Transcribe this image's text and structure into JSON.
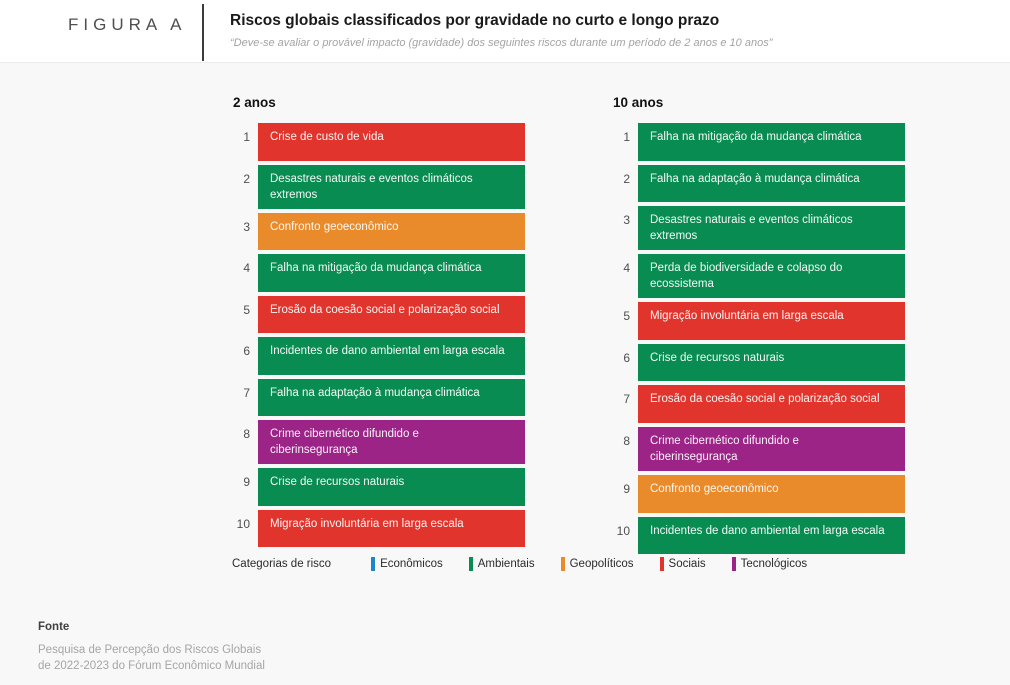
{
  "header": {
    "figure_label": "FIGURA A",
    "title": "Riscos globais classificados por gravidade no curto e longo prazo",
    "subtitle": "“Deve-se avaliar o provável impacto (gravidade) dos seguintes riscos durante um período de 2 anos e 10 anos”"
  },
  "category_colors": {
    "Econômicos": "#1e86c7",
    "Ambientais": "#098c51",
    "Geopolíticos": "#e98a2b",
    "Sociais": "#e1342c",
    "Tecnológicos": "#9c2487"
  },
  "chart_data": {
    "type": "table",
    "title": "Riscos globais classificados por gravidade no curto e longo prazo",
    "subtitle": "“Deve-se avaliar o provável impacto (gravidade) dos seguintes riscos durante um período de 2 anos e 10 anos”",
    "legend_position": "bottom",
    "columns": [
      {
        "label": "2 anos",
        "items": [
          {
            "rank": 1,
            "label": "Crise de custo de vida",
            "category": "Sociais"
          },
          {
            "rank": 2,
            "label": "Desastres naturais e eventos climáticos extremos",
            "category": "Ambientais"
          },
          {
            "rank": 3,
            "label": "Confronto geoeconômico",
            "category": "Geopolíticos"
          },
          {
            "rank": 4,
            "label": "Falha na mitigação da mudança climática",
            "category": "Ambientais"
          },
          {
            "rank": 5,
            "label": "Erosão da coesão social e polarização social",
            "category": "Sociais"
          },
          {
            "rank": 6,
            "label": "Incidentes de dano ambiental em larga escala",
            "category": "Ambientais"
          },
          {
            "rank": 7,
            "label": "Falha na adaptação à mudança climática",
            "category": "Ambientais"
          },
          {
            "rank": 8,
            "label": "Crime cibernético difundido e ciberinsegurança",
            "category": "Tecnológicos"
          },
          {
            "rank": 9,
            "label": "Crise de recursos naturais",
            "category": "Ambientais"
          },
          {
            "rank": 10,
            "label": "Migração involuntária em larga escala",
            "category": "Sociais"
          }
        ]
      },
      {
        "label": "10 anos",
        "items": [
          {
            "rank": 1,
            "label": "Falha na mitigação da mudança climática",
            "category": "Ambientais"
          },
          {
            "rank": 2,
            "label": "Falha na adaptação à mudança climática",
            "category": "Ambientais"
          },
          {
            "rank": 3,
            "label": "Desastres naturais e eventos climáticos extremos",
            "category": "Ambientais"
          },
          {
            "rank": 4,
            "label": "Perda de biodiversidade e colapso do ecossistema",
            "category": "Ambientais"
          },
          {
            "rank": 5,
            "label": "Migração involuntária em larga escala",
            "category": "Sociais"
          },
          {
            "rank": 6,
            "label": "Crise de recursos naturais",
            "category": "Ambientais"
          },
          {
            "rank": 7,
            "label": "Erosão da coesão social e polarização social",
            "category": "Sociais"
          },
          {
            "rank": 8,
            "label": "Crime cibernético difundido e ciberinsegurança",
            "category": "Tecnológicos"
          },
          {
            "rank": 9,
            "label": "Confronto geoeconômico",
            "category": "Geopolíticos"
          },
          {
            "rank": 10,
            "label": "Incidentes de dano ambiental em larga escala",
            "category": "Ambientais"
          }
        ]
      }
    ]
  },
  "legend": {
    "label": "Categorias de risco",
    "items": [
      {
        "label": "Econômicos",
        "color": "#1e86c7"
      },
      {
        "label": "Ambientais",
        "color": "#098c51"
      },
      {
        "label": "Geopolíticos",
        "color": "#e98a2b"
      },
      {
        "label": "Sociais",
        "color": "#e1342c"
      },
      {
        "label": "Tecnológicos",
        "color": "#9c2487"
      }
    ]
  },
  "footer": {
    "label": "Fonte",
    "source_lines": [
      "Pesquisa de Percepção dos Riscos Globais",
      "de 2022-2023 do Fórum Econômico Mundial"
    ]
  }
}
